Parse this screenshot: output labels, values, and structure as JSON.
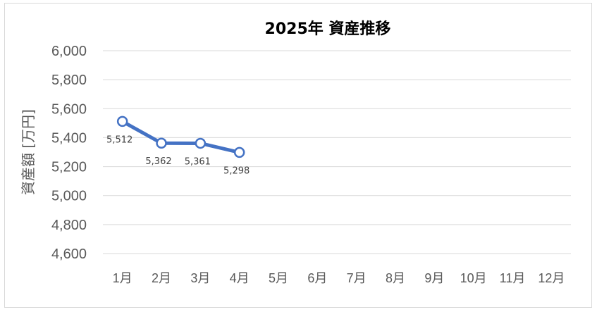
{
  "chart_data": {
    "type": "line",
    "title": "2025年 資産推移",
    "xlabel": "",
    "ylabel": "資産額 [万円]",
    "categories": [
      "1月",
      "2月",
      "3月",
      "4月",
      "5月",
      "6月",
      "7月",
      "8月",
      "9月",
      "10月",
      "11月",
      "12月"
    ],
    "series": [
      {
        "values": [
          5512,
          5362,
          5361,
          5298,
          null,
          null,
          null,
          null,
          null,
          null,
          null,
          null
        ],
        "labels": [
          "5,512",
          "5,362",
          "5,361",
          "5,298"
        ]
      }
    ],
    "ylim": [
      4600,
      6000
    ],
    "yticks": [
      4600,
      4800,
      5000,
      5200,
      5400,
      5600,
      5800,
      6000
    ],
    "ytick_labels": [
      "4,600",
      "4,800",
      "5,000",
      "5,200",
      "5,400",
      "5,600",
      "5,800",
      "6,000"
    ],
    "grid": true,
    "legend": "none",
    "colors": {
      "line": "#4472c4",
      "grid": "#d9d9d9",
      "marker_fill": "#ffffff"
    }
  }
}
